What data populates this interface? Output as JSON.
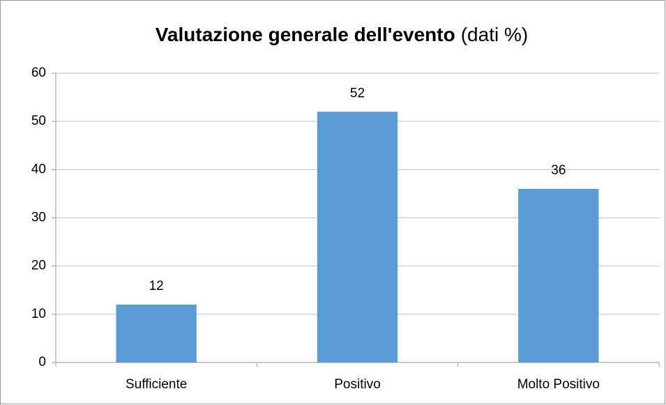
{
  "chart_data": {
    "type": "bar",
    "title": "Valutazione generale dell'evento",
    "title_note": "(dati %)",
    "categories": [
      "Sufficiente",
      "Positivo",
      "Molto Positivo"
    ],
    "values": [
      12,
      52,
      36
    ],
    "color": "#5b9bd5",
    "ylim": [
      0,
      60
    ],
    "yticks": [
      0,
      10,
      20,
      30,
      40,
      50,
      60
    ],
    "grid": true
  }
}
